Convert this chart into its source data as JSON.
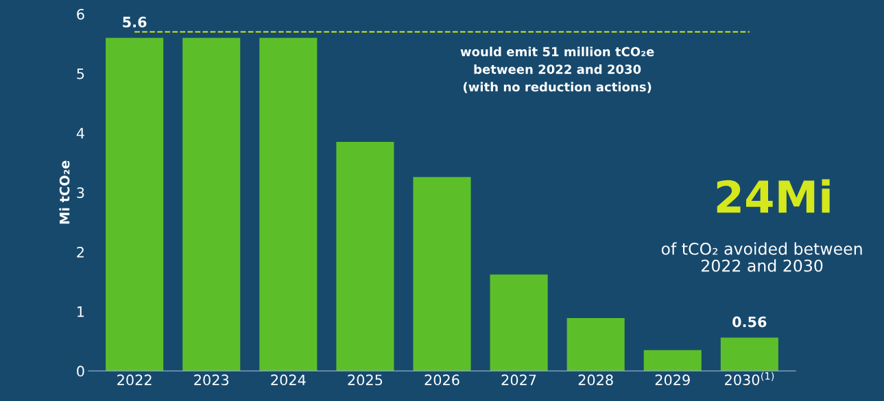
{
  "chart_data": {
    "type": "bar",
    "ylabel": "Mi tCO₂e",
    "categories": [
      "2022",
      "2023",
      "2024",
      "2025",
      "2026",
      "2027",
      "2028",
      "2029",
      "2030$^{(1)}$"
    ],
    "series": [
      {
        "color": "#5cbf2a",
        "values": [
          5.6,
          5.6,
          5.6,
          3.85,
          3.26,
          1.62,
          0.89,
          0.35,
          0.56
        ],
        "value_labels": [
          "5.6",
          null,
          null,
          null,
          null,
          null,
          null,
          null,
          "0.56"
        ]
      }
    ],
    "ylim": [
      0,
      6
    ],
    "yticks": [
      0,
      1,
      2,
      3,
      4,
      5,
      6
    ],
    "grid": false,
    "ref_lines": [
      {
        "axis": "y",
        "value": 5.7,
        "label": "would emit 51 million tCO₂e\nbetween 2022 and 2030\n(with no reduction actions)",
        "color": "#d4e81c",
        "line_style": "dashed"
      }
    ],
    "annotations": [
      "24Mi",
      "of tCO₂ avoided between\n2022 and 2030"
    ]
  }
}
